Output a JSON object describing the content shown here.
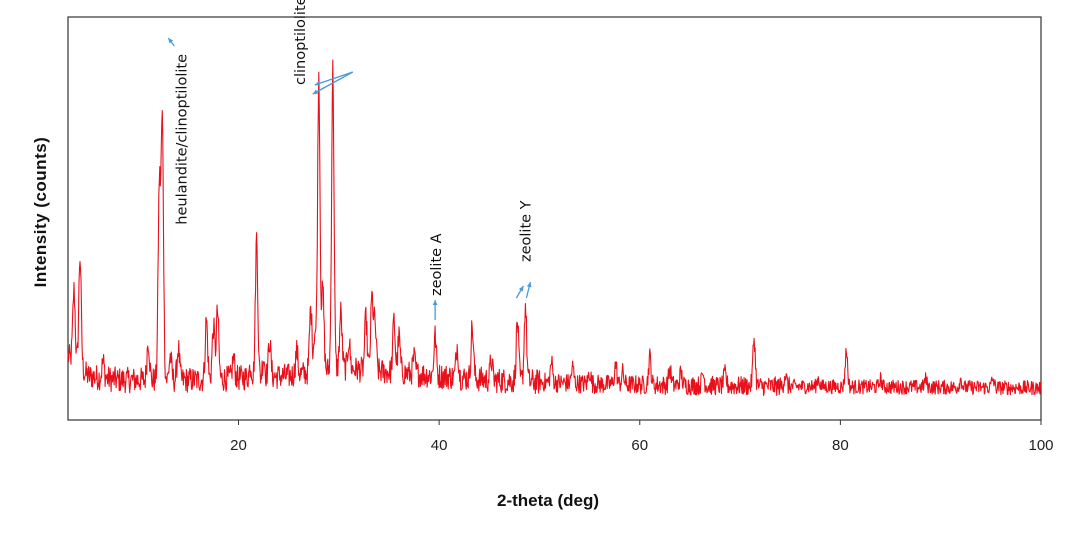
{
  "chart_data": {
    "type": "line",
    "title": "",
    "xlabel": "2-theta (deg)",
    "ylabel": "Intensity  (counts)",
    "xlim": [
      3,
      100
    ],
    "ylim": [
      0,
      100
    ],
    "xticks": [
      20,
      40,
      60,
      80,
      100
    ],
    "y_tick_labels": false,
    "grid": false,
    "legend": "none",
    "line_color": "#e8101a",
    "annotation_color": "#4a9ad8",
    "baseline": [
      [
        3,
        14
      ],
      [
        5,
        9
      ],
      [
        8,
        8
      ],
      [
        12,
        8
      ],
      [
        16,
        8
      ],
      [
        20,
        8.5
      ],
      [
        25,
        9
      ],
      [
        30,
        11
      ],
      [
        35,
        10
      ],
      [
        40,
        9
      ],
      [
        45,
        8
      ],
      [
        50,
        7.5
      ],
      [
        55,
        7
      ],
      [
        60,
        6.8
      ],
      [
        70,
        6.5
      ],
      [
        80,
        6.3
      ],
      [
        90,
        6.2
      ],
      [
        100,
        6
      ]
    ],
    "peaks": [
      {
        "x": 3.6,
        "height": 18
      },
      {
        "x": 4.2,
        "height": 28
      },
      {
        "x": 6.5,
        "height": 4
      },
      {
        "x": 11.0,
        "height": 10
      },
      {
        "x": 12.1,
        "height": 48
      },
      {
        "x": 12.4,
        "height": 64
      },
      {
        "x": 13.2,
        "height": 6
      },
      {
        "x": 14.0,
        "height": 8
      },
      {
        "x": 16.8,
        "height": 15
      },
      {
        "x": 17.5,
        "height": 13
      },
      {
        "x": 17.9,
        "height": 17
      },
      {
        "x": 19.5,
        "height": 5
      },
      {
        "x": 21.2,
        "height": 3
      },
      {
        "x": 21.8,
        "height": 35
      },
      {
        "x": 22.5,
        "height": 5
      },
      {
        "x": 23.1,
        "height": 9
      },
      {
        "x": 25.8,
        "height": 6
      },
      {
        "x": 27.2,
        "height": 16
      },
      {
        "x": 27.6,
        "height": 10
      },
      {
        "x": 28.0,
        "height": 74
      },
      {
        "x": 28.4,
        "height": 20
      },
      {
        "x": 29.4,
        "height": 75
      },
      {
        "x": 30.2,
        "height": 14
      },
      {
        "x": 31.0,
        "height": 7
      },
      {
        "x": 32.7,
        "height": 13
      },
      {
        "x": 33.3,
        "height": 18
      },
      {
        "x": 33.6,
        "height": 12
      },
      {
        "x": 35.5,
        "height": 13
      },
      {
        "x": 36.0,
        "height": 9
      },
      {
        "x": 37.5,
        "height": 4
      },
      {
        "x": 39.6,
        "height": 10
      },
      {
        "x": 41.8,
        "height": 8
      },
      {
        "x": 43.3,
        "height": 13
      },
      {
        "x": 45.2,
        "height": 5
      },
      {
        "x": 47.8,
        "height": 15
      },
      {
        "x": 48.6,
        "height": 19
      },
      {
        "x": 51.2,
        "height": 5
      },
      {
        "x": 53.3,
        "height": 4
      },
      {
        "x": 55.0,
        "height": 3
      },
      {
        "x": 57.6,
        "height": 5
      },
      {
        "x": 58.3,
        "height": 3
      },
      {
        "x": 61.0,
        "height": 7
      },
      {
        "x": 63.0,
        "height": 4
      },
      {
        "x": 64.1,
        "height": 3
      },
      {
        "x": 66.3,
        "height": 3
      },
      {
        "x": 68.5,
        "height": 3
      },
      {
        "x": 71.4,
        "height": 12
      },
      {
        "x": 74.5,
        "height": 3
      },
      {
        "x": 77.8,
        "height": 2
      },
      {
        "x": 80.6,
        "height": 9
      },
      {
        "x": 84.0,
        "height": 2
      },
      {
        "x": 88.5,
        "height": 2
      },
      {
        "x": 92.0,
        "height": 2
      },
      {
        "x": 95.2,
        "height": 2
      }
    ],
    "annotations": [
      {
        "text": "heulandite/clinoptilolite",
        "target_x": 12.4,
        "target_y": 91,
        "offset": "right",
        "angle": -90
      },
      {
        "text": "clinoptilolite",
        "target_x": 28.0,
        "target_y": 80,
        "offset": "above",
        "angle": -90
      },
      {
        "text": "zeolite A",
        "target_x": 39.6,
        "target_y": 24,
        "offset": "above",
        "angle": -90
      },
      {
        "text": "zeolite Y",
        "target_x": 48.1,
        "target_y": 30,
        "offset": "above",
        "angle": -90
      }
    ]
  }
}
